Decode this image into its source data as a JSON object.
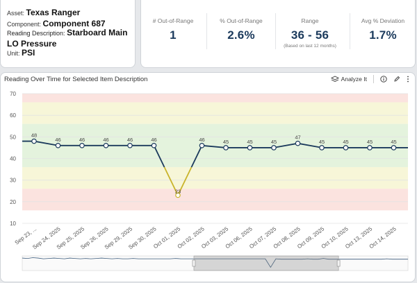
{
  "asset": {
    "asset_label": "Asset:",
    "asset_value": "Texas Ranger",
    "component_label": "Component:",
    "component_value": "Component 687",
    "reading_label": "Reading Description:",
    "reading_value": "Starboard Main LO Pressure",
    "unit_label": "Unit:",
    "unit_value": "PSI"
  },
  "stats": [
    {
      "label": "# Out-of-Range",
      "value": "1",
      "note": ""
    },
    {
      "label": "% Out-of-Range",
      "value": "2.6%",
      "note": ""
    },
    {
      "label": "Range",
      "value": "36 - 56",
      "note": "(Based on last 12 months)"
    },
    {
      "label": "Avg % Deviation",
      "value": "1.7%",
      "note": ""
    }
  ],
  "chart_panel": {
    "title": "Reading Over Time for Selected Item Description",
    "analyze_label": "Analyze It"
  },
  "colors": {
    "line": "#1b3a5c",
    "out_of_range": "#c9b32a",
    "band_red": "#fbe3df",
    "band_yellow": "#f7f6d8",
    "band_green": "#e4f3dd"
  },
  "chart_data": {
    "type": "line",
    "categories": [
      "Sep 23, ...",
      "Sep 24, 2025",
      "Sep 25, 2025",
      "Sep 26, 2025",
      "Sep 29, 2025",
      "Sep 30, 2025",
      "Oct 01, 2025",
      "Oct 02, 2025",
      "Oct 03, 2025",
      "Oct 06, 2025",
      "Oct 07, 2025",
      "Oct 08, 2025",
      "Oct 09, 2025",
      "Oct 10, 2025",
      "Oct 13, 2025",
      "Oct 14, 2025"
    ],
    "values": [
      48,
      46,
      46,
      46,
      46,
      46,
      23,
      46,
      45,
      45,
      45,
      47,
      45,
      45,
      45,
      45
    ],
    "first_value": 48,
    "last_value": 45,
    "yticks": [
      10,
      20,
      30,
      40,
      50,
      60,
      70
    ],
    "ylim": [
      10,
      70
    ],
    "bands": [
      {
        "from": 66,
        "to": 70,
        "level": "red"
      },
      {
        "from": 56,
        "to": 66,
        "level": "yellow"
      },
      {
        "from": 36,
        "to": 56,
        "level": "green"
      },
      {
        "from": 26,
        "to": 36,
        "level": "yellow"
      },
      {
        "from": 16,
        "to": 26,
        "level": "red"
      }
    ],
    "out_of_range_index": 6,
    "xlabel": "",
    "ylabel": "",
    "navigator": {
      "window_start_fraction": 0.445,
      "window_end_fraction": 0.82
    }
  }
}
